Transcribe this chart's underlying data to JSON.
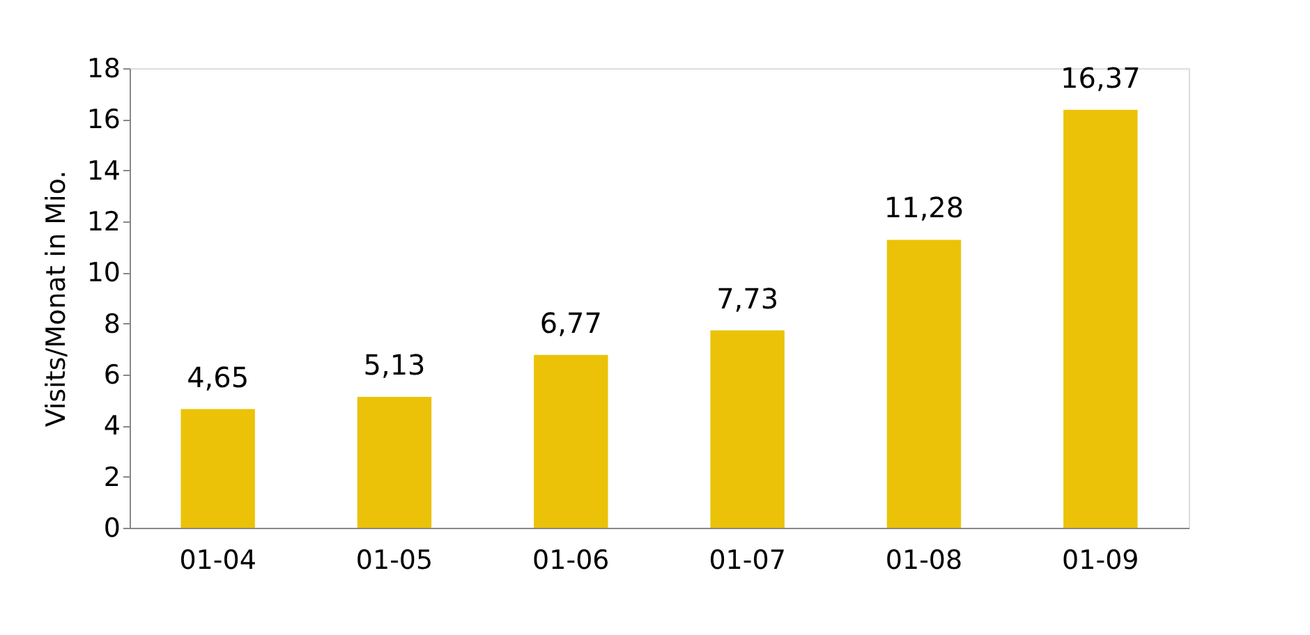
{
  "chart_data": {
    "type": "bar",
    "ylabel": "Visits/Monat in Mio.",
    "categories": [
      "01-04",
      "01-05",
      "01-06",
      "01-07",
      "01-08",
      "01-09"
    ],
    "values": [
      4.65,
      5.13,
      6.77,
      7.73,
      11.28,
      16.37
    ],
    "value_labels": [
      "4,65",
      "5,13",
      "6,77",
      "7,73",
      "11,28",
      "16,37"
    ],
    "color": "#ebc207",
    "ylim": [
      0,
      18
    ],
    "yticks": [
      0,
      2,
      4,
      6,
      8,
      10,
      12,
      14,
      16,
      18
    ],
    "grid": false
  }
}
